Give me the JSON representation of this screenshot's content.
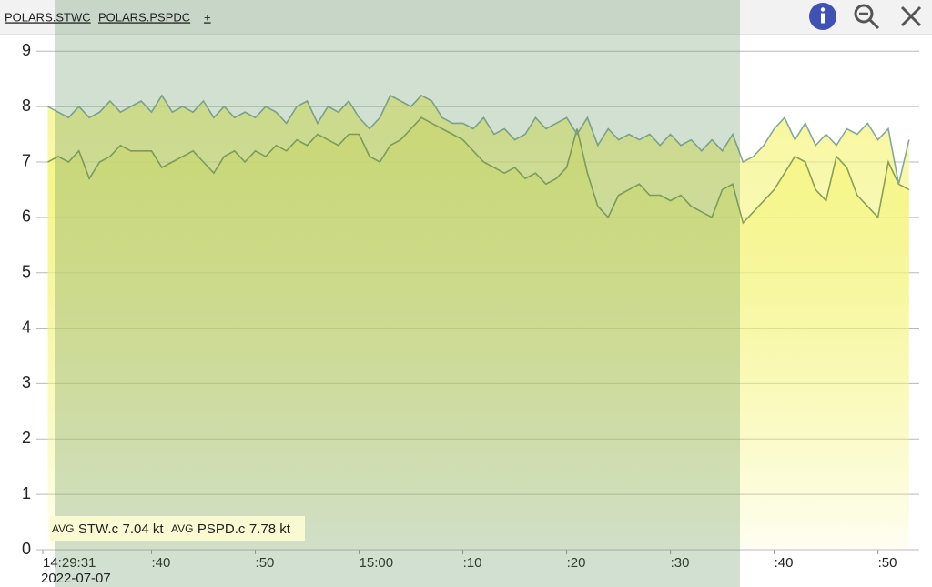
{
  "tabs": [
    "POLARS.STWC",
    "POLARS.PSPDC",
    "+"
  ],
  "chart_data": {
    "type": "line",
    "x": [
      "14:30:00",
      "14:31:00",
      "14:32:00",
      "14:33:00",
      "14:34:00",
      "14:35:00",
      "14:36:00",
      "14:37:00",
      "14:38:00",
      "14:39:00",
      "14:40:00",
      "14:41:00",
      "14:42:00",
      "14:43:00",
      "14:44:00",
      "14:45:00",
      "14:46:00",
      "14:47:00",
      "14:48:00",
      "14:49:00",
      "14:50:00",
      "14:51:00",
      "14:52:00",
      "14:53:00",
      "14:54:00",
      "14:55:00",
      "14:56:00",
      "14:57:00",
      "14:58:00",
      "14:59:00",
      "15:00:00",
      "15:01:00",
      "15:02:00",
      "15:03:00",
      "15:04:00",
      "15:05:00",
      "15:06:00",
      "15:07:00",
      "15:08:00",
      "15:09:00",
      "15:10:00",
      "15:11:00",
      "15:12:00",
      "15:13:00",
      "15:14:00",
      "15:15:00",
      "15:16:00",
      "15:17:00",
      "15:18:00",
      "15:19:00",
      "15:20:00",
      "15:21:00",
      "15:22:00",
      "15:23:00",
      "15:24:00",
      "15:25:00",
      "15:26:00",
      "15:27:00",
      "15:28:00",
      "15:29:00",
      "15:30:00",
      "15:31:00",
      "15:32:00",
      "15:33:00",
      "15:34:00",
      "15:35:00",
      "15:36:00",
      "15:37:00",
      "15:38:00",
      "15:39:00",
      "15:40:00",
      "15:41:00",
      "15:42:00",
      "15:43:00",
      "15:44:00",
      "15:45:00",
      "15:46:00",
      "15:47:00",
      "15:48:00",
      "15:49:00",
      "15:50:00",
      "15:51:00",
      "15:52:00",
      "15:53:00"
    ],
    "series": [
      {
        "name": "STW.c",
        "color": "#8a9f5a",
        "values": [
          7.0,
          7.1,
          7.0,
          7.2,
          6.7,
          7.0,
          7.1,
          7.3,
          7.2,
          7.2,
          7.2,
          6.9,
          7.0,
          7.1,
          7.2,
          7.0,
          6.8,
          7.1,
          7.2,
          7.0,
          7.2,
          7.1,
          7.3,
          7.2,
          7.4,
          7.3,
          7.5,
          7.4,
          7.3,
          7.5,
          7.5,
          7.1,
          7.0,
          7.3,
          7.4,
          7.6,
          7.8,
          7.7,
          7.6,
          7.5,
          7.4,
          7.2,
          7.0,
          6.9,
          6.8,
          6.9,
          6.7,
          6.8,
          6.6,
          6.7,
          6.9,
          7.6,
          6.8,
          6.2,
          6.0,
          6.4,
          6.5,
          6.6,
          6.4,
          6.4,
          6.3,
          6.4,
          6.2,
          6.1,
          6.0,
          6.5,
          6.6,
          5.9,
          6.1,
          6.3,
          6.5,
          6.8,
          7.1,
          7.0,
          6.5,
          6.3,
          7.1,
          6.9,
          6.4,
          6.2,
          6.0,
          7.0,
          6.6,
          6.5
        ]
      },
      {
        "name": "PSPD.c",
        "color": "#86a89c",
        "values": [
          8.0,
          7.9,
          7.8,
          8.0,
          7.8,
          7.9,
          8.1,
          7.9,
          8.0,
          8.1,
          7.9,
          8.2,
          7.9,
          8.0,
          7.9,
          8.1,
          7.8,
          8.0,
          7.8,
          7.9,
          7.8,
          8.0,
          7.9,
          7.7,
          8.0,
          8.1,
          7.7,
          8.0,
          7.9,
          8.1,
          7.8,
          7.6,
          7.8,
          8.2,
          8.1,
          8.0,
          8.2,
          8.1,
          7.8,
          7.7,
          7.7,
          7.6,
          7.8,
          7.5,
          7.6,
          7.4,
          7.5,
          7.8,
          7.6,
          7.7,
          7.8,
          7.5,
          7.8,
          7.3,
          7.6,
          7.4,
          7.5,
          7.4,
          7.5,
          7.3,
          7.5,
          7.3,
          7.4,
          7.2,
          7.4,
          7.2,
          7.5,
          7.0,
          7.1,
          7.3,
          7.6,
          7.8,
          7.4,
          7.7,
          7.3,
          7.5,
          7.3,
          7.6,
          7.5,
          7.7,
          7.4,
          7.6,
          6.6,
          7.4
        ]
      }
    ],
    "xlim": [
      "14:29:31",
      "15:53:43"
    ],
    "xticks": [
      "14:29:31",
      {
        "value": "14:40:00",
        "label": ":40"
      },
      {
        "value": "14:50:00",
        "label": ":50"
      },
      {
        "value": "15:00:00",
        "label": "15:00"
      },
      {
        "value": "15:10:00",
        "label": ":10"
      },
      {
        "value": "15:20:00",
        "label": ":20"
      },
      {
        "value": "15:30:00",
        "label": ":30"
      },
      {
        "value": "15:40:00",
        "label": ":40"
      },
      {
        "value": "15:50:00",
        "label": ":50"
      }
    ],
    "date": "2022-07-07",
    "ylim": [
      0,
      9.3
    ],
    "yticks": [
      0,
      1,
      2,
      3,
      4,
      5,
      6,
      7,
      8,
      9
    ],
    "grid": true,
    "legend": [
      {
        "tag": "AVG",
        "text": "7.04 kt"
      },
      {
        "tag": "AVG",
        "text": "7.78 kt"
      }
    ]
  }
}
